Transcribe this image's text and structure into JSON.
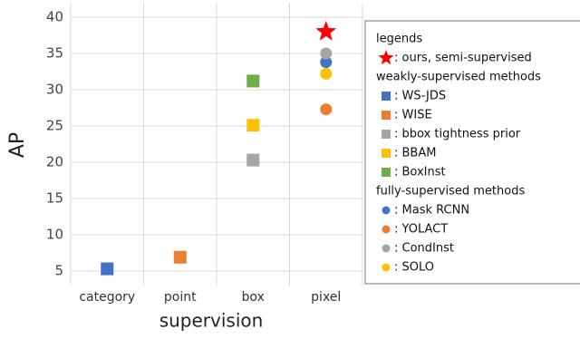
{
  "chart_data": {
    "type": "scatter",
    "x_label": "supervision",
    "y_label": "AP",
    "categories": [
      "category",
      "point",
      "box",
      "pixel"
    ],
    "ylim": [
      3,
      42
    ],
    "yticks": [
      5,
      10,
      15,
      20,
      25,
      30,
      35,
      40
    ],
    "grid": true,
    "legend_title": "legends",
    "groups": [
      {
        "series": [
          {
            "name": ": ours, semi-supervised",
            "color": "#ff0000",
            "marker": "star",
            "values": [
              null,
              null,
              null,
              38
            ]
          }
        ]
      },
      {
        "title": "weakly-supervised methods",
        "series": [
          {
            "name": ": WS-JDS",
            "color": "#4472c4",
            "marker": "square",
            "values": [
              5.3,
              null,
              null,
              null
            ]
          },
          {
            "name": ": WISE",
            "color": "#ed7d31",
            "marker": "square",
            "values": [
              null,
              6.9,
              null,
              null
            ]
          },
          {
            "name": ": bbox tightness prior",
            "color": "#a5a5a5",
            "marker": "square",
            "values": [
              null,
              null,
              20.3,
              null
            ]
          },
          {
            "name": ": BBAM",
            "color": "#ffc000",
            "marker": "square",
            "values": [
              null,
              null,
              25.1,
              null
            ]
          },
          {
            "name": ": BoxInst",
            "color": "#70ad47",
            "marker": "square",
            "values": [
              null,
              null,
              31.2,
              null
            ]
          }
        ]
      },
      {
        "title": "fully-supervised methods",
        "series": [
          {
            "name": ": Mask RCNN",
            "color": "#4472c4",
            "marker": "circle",
            "values": [
              null,
              null,
              null,
              33.8
            ]
          },
          {
            "name": ": YOLACT",
            "color": "#ed7d31",
            "marker": "circle",
            "values": [
              null,
              null,
              null,
              27.3
            ]
          },
          {
            "name": ": CondInst",
            "color": "#a5a5a5",
            "marker": "circle",
            "values": [
              null,
              null,
              null,
              35
            ]
          },
          {
            "name": ": SOLO",
            "color": "#ffc000",
            "marker": "circle",
            "values": [
              null,
              null,
              null,
              32.2
            ]
          }
        ]
      }
    ]
  }
}
